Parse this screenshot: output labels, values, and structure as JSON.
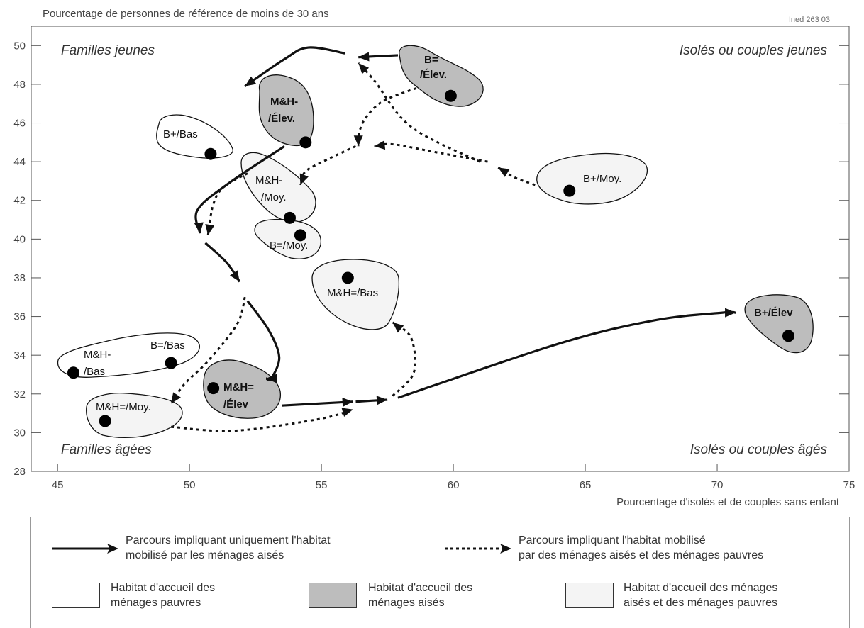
{
  "figure": {
    "y_axis_title": "Pourcentage de personnes de référence de moins de 30 ans",
    "x_axis_title": "Pourcentage d'isolés et de couples sans enfant",
    "source_tag": "Ined 263 03",
    "quadrants": {
      "top_left": "Familles jeunes",
      "top_right": "Isolés ou couples jeunes",
      "bottom_left": "Familles âgées",
      "bottom_right": "Isolés ou couples âgés"
    }
  },
  "colors": {
    "pauvres": "#ffffff",
    "aises": "#bdbdbd",
    "mixtes": "#f4f4f4",
    "stroke": "#111111"
  },
  "legend": {
    "solid_path": [
      "Parcours impliquant uniquement l'habitat",
      "mobilisé par les ménages aisés"
    ],
    "dotted_path": [
      "Parcours impliquant l'habitat mobilisé",
      "par des ménages aisés et des ménages pauvres"
    ],
    "pauvres": [
      "Habitat d'accueil des",
      "ménages pauvres"
    ],
    "aises": [
      "Habitat d'accueil des",
      "ménages aisés"
    ],
    "mixtes": [
      "Habitat d'accueil des ménages",
      "aisés et des ménages pauvres"
    ]
  },
  "chart_data": {
    "type": "scatter",
    "xlabel": "Pourcentage d'isolés et de couples sans enfant",
    "ylabel": "Pourcentage de personnes de référence de moins de 30 ans",
    "xlim": [
      44,
      75
    ],
    "ylim": [
      28,
      51
    ],
    "x_ticks": [
      45,
      50,
      55,
      60,
      65,
      70,
      75
    ],
    "y_ticks": [
      28,
      30,
      32,
      34,
      36,
      38,
      40,
      42,
      44,
      46,
      48,
      50
    ],
    "grid": false,
    "points": [
      {
        "id": "b-eq-elev",
        "label": [
          "B=",
          "/Élev."
        ],
        "x": 59.9,
        "y": 47.4,
        "habitat": "aises"
      },
      {
        "id": "mh-minus-elev",
        "label": [
          "M&H-",
          "/Élev."
        ],
        "x": 54.4,
        "y": 45.0,
        "habitat": "aises"
      },
      {
        "id": "b-plus-bas",
        "label": [
          "B+/Bas"
        ],
        "x": 50.8,
        "y": 44.4,
        "habitat": "pauvres"
      },
      {
        "id": "mh-minus-moy",
        "label": [
          "M&H-",
          "/Moy."
        ],
        "x": 53.8,
        "y": 41.1,
        "habitat": "mixtes"
      },
      {
        "id": "b-plus-moy",
        "label": [
          "B+/Moy."
        ],
        "x": 64.4,
        "y": 42.5,
        "habitat": "mixtes"
      },
      {
        "id": "b-eq-moy",
        "label": [
          "B=/Moy."
        ],
        "x": 54.2,
        "y": 40.2,
        "habitat": "mixtes"
      },
      {
        "id": "mh-eq-bas",
        "label": [
          "M&H=/Bas"
        ],
        "x": 56.0,
        "y": 38.0,
        "habitat": "mixtes"
      },
      {
        "id": "b-plus-elev",
        "label": [
          "B+/Élev"
        ],
        "x": 72.7,
        "y": 35.0,
        "habitat": "aises"
      },
      {
        "id": "mh-minus-bas",
        "label": [
          "M&H-",
          "/Bas"
        ],
        "x": 45.6,
        "y": 33.1,
        "habitat": "pauvres"
      },
      {
        "id": "b-eq-bas",
        "label": [
          "B=/Bas"
        ],
        "x": 49.3,
        "y": 33.6,
        "habitat": "pauvres"
      },
      {
        "id": "mh-eq-elev",
        "label": [
          "M&H=",
          "/Élev"
        ],
        "x": 50.9,
        "y": 32.3,
        "habitat": "aises"
      },
      {
        "id": "mh-eq-moy",
        "label": [
          "M&H=/Moy."
        ],
        "x": 46.8,
        "y": 30.6,
        "habitat": "mixtes"
      }
    ],
    "paths": [
      {
        "style": "solid",
        "points": [
          [
            57.9,
            49.5
          ],
          [
            56.4,
            49.4
          ]
        ]
      },
      {
        "style": "solid",
        "points": [
          [
            55.9,
            49.6
          ],
          [
            54.5,
            49.9
          ],
          [
            53.6,
            49.3
          ],
          [
            52.1,
            47.9
          ]
        ]
      },
      {
        "style": "solid",
        "points": [
          [
            53.6,
            44.8
          ],
          [
            51.5,
            42.9
          ],
          [
            50.3,
            41.5
          ],
          [
            50.4,
            40.3
          ]
        ]
      },
      {
        "style": "solid",
        "points": [
          [
            50.6,
            39.8
          ],
          [
            51.4,
            38.8
          ],
          [
            51.9,
            37.8
          ]
        ]
      },
      {
        "style": "solid",
        "points": [
          [
            52.2,
            36.8
          ],
          [
            53.0,
            35.3
          ],
          [
            53.4,
            33.9
          ],
          [
            53.1,
            32.8
          ],
          [
            52.9,
            32.8
          ]
        ]
      },
      {
        "style": "solid",
        "points": [
          [
            53.5,
            31.4
          ],
          [
            56.2,
            31.6
          ]
        ]
      },
      {
        "style": "solid",
        "points": [
          [
            56.3,
            31.6
          ],
          [
            57.5,
            31.7
          ]
        ]
      },
      {
        "style": "solid",
        "points": [
          [
            57.9,
            31.8
          ],
          [
            64.0,
            34.6
          ],
          [
            67.6,
            35.8
          ],
          [
            70.2,
            36.2
          ],
          [
            70.7,
            36.2
          ]
        ]
      },
      {
        "style": "dotted",
        "points": [
          [
            58.6,
            47.8
          ],
          [
            57.3,
            47.1
          ],
          [
            56.6,
            46.1
          ],
          [
            56.4,
            45.2
          ],
          [
            56.4,
            44.8
          ]
        ]
      },
      {
        "style": "dotted",
        "points": [
          [
            56.3,
            44.8
          ],
          [
            55.2,
            44.1
          ],
          [
            54.4,
            43.5
          ],
          [
            54.2,
            42.8
          ]
        ]
      },
      {
        "style": "dotted",
        "points": [
          [
            52.2,
            43.4
          ],
          [
            51.3,
            42.7
          ],
          [
            50.9,
            41.8
          ],
          [
            50.7,
            40.2
          ]
        ]
      },
      {
        "style": "dotted",
        "points": [
          [
            63.1,
            42.8
          ],
          [
            62.3,
            43.2
          ],
          [
            61.7,
            43.7
          ]
        ]
      },
      {
        "style": "dotted",
        "points": [
          [
            61.3,
            44.0
          ],
          [
            59.3,
            44.5
          ],
          [
            57.7,
            44.9
          ],
          [
            57.0,
            44.8
          ]
        ]
      },
      {
        "style": "dotted",
        "points": [
          [
            61.0,
            44.0
          ],
          [
            58.4,
            45.8
          ],
          [
            57.0,
            48.2
          ],
          [
            56.4,
            49.1
          ]
        ]
      },
      {
        "style": "dotted",
        "points": [
          [
            52.1,
            37.0
          ],
          [
            51.8,
            35.6
          ],
          [
            50.7,
            33.7
          ],
          [
            49.8,
            32.5
          ],
          [
            49.3,
            31.5
          ]
        ]
      },
      {
        "style": "dotted",
        "points": [
          [
            49.3,
            30.3
          ],
          [
            51.7,
            30.1
          ],
          [
            54.9,
            30.7
          ],
          [
            56.2,
            31.2
          ]
        ]
      },
      {
        "style": "dotted",
        "points": [
          [
            57.7,
            31.9
          ],
          [
            58.5,
            33.1
          ],
          [
            58.4,
            34.9
          ],
          [
            57.7,
            35.7
          ]
        ]
      }
    ]
  }
}
